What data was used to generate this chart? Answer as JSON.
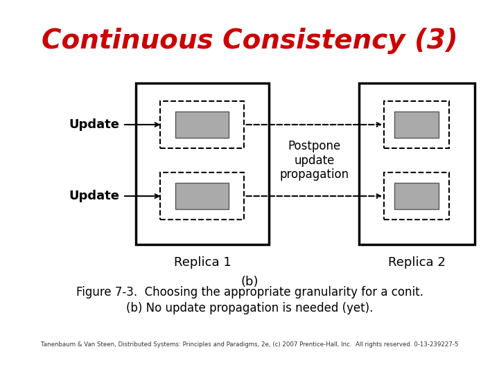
{
  "title": "Continuous Consistency (3)",
  "title_color": "#CC0000",
  "title_fontsize": 28,
  "replica1_label": "Replica 1",
  "replica2_label": "Replica 2",
  "label_b": "(b)",
  "update1_label": "Update",
  "update2_label": "Update",
  "postpone_label": "Postpone\nupdate\npropagation",
  "figure_caption_line1": "Figure 7-3.  Choosing the appropriate granularity for a conit.",
  "figure_caption_line2": "(b) No update propagation is needed (yet).",
  "copyright_text": "Tanenbaum & Van Steen, Distributed Systems: Principles and Paradigms, 2e, (c) 2007 Prentice-Hall, Inc.  All rights reserved. 0-13-239227-5",
  "bg_color": "#ffffff",
  "box_color": "#000000",
  "dashed_color": "#000000",
  "gray_fill": "#aaaaaa",
  "arrow_color": "#000000"
}
